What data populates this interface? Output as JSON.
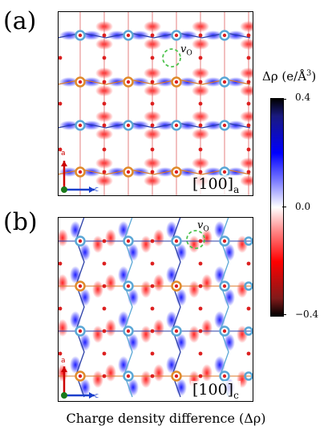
{
  "panels": [
    {
      "label": "(a)",
      "projection_main": "[100]",
      "projection_sub": "a",
      "vacancy_main": "v",
      "vacancy_sub": "O",
      "axis_up": "a",
      "axis_right": "c"
    },
    {
      "label": "(b)",
      "projection_main": "[100]",
      "projection_sub": "c",
      "vacancy_main": "v",
      "vacancy_sub": "O",
      "axis_up": "a",
      "axis_right": "c"
    }
  ],
  "colorbar": {
    "title_main": "Δρ (e/Å",
    "title_sup": "3",
    "title_end": ")",
    "max": "0.4",
    "mid": "0.0",
    "min": "−0.4",
    "colors": {
      "positive": "#0000ff",
      "zero": "#ffffff",
      "negative": "#ff0000",
      "extreme": "#000000"
    }
  },
  "caption": "Charge density difference (Δρ)",
  "colors": {
    "oxygen": "#dd2020",
    "cation_blue": "#5aa7d6",
    "cation_orange": "#e08a2a",
    "bond_blue": "#2a3fa8",
    "bond_orange": "#d87a2a",
    "vacancy_ring": "#4ec34e",
    "axis_a": "#cc0000",
    "axis_c": "#1a3fcc",
    "origin": "#1a7a1a"
  }
}
